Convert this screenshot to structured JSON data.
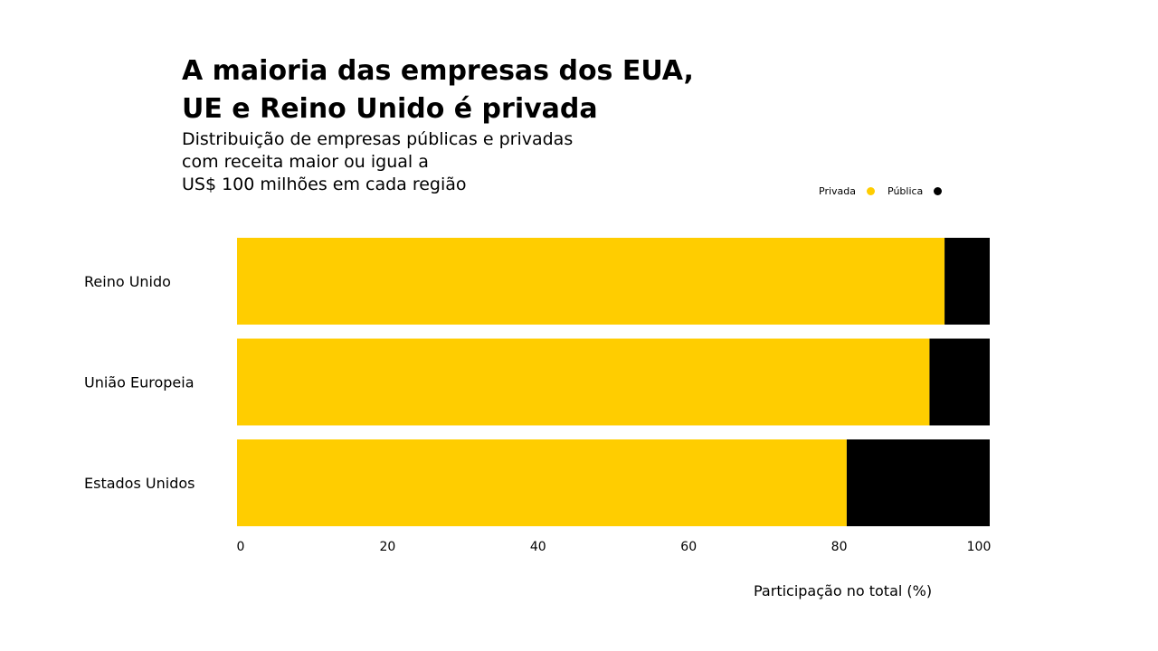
{
  "chart_data": {
    "type": "bar",
    "orientation": "horizontal",
    "stacked": true,
    "title_lines": [
      "A maioria das empresas dos EUA,",
      "UE e Reino Unido é privada"
    ],
    "subtitle_lines": [
      "Distribuição de empresas públicas e privadas",
      "com receita maior ou igual a",
      "US$ 100 milhões em cada região"
    ],
    "categories": [
      "Reino Unido",
      "União Europeia",
      "Estados Unidos"
    ],
    "series": [
      {
        "name": "Privada",
        "color": "#FFCD00",
        "values": [
          94,
          92,
          81
        ]
      },
      {
        "name": "Pública",
        "color": "#000000",
        "values": [
          6,
          8,
          19
        ]
      }
    ],
    "xlabel": "Participação no total (%)",
    "ylabel": "",
    "xlim": [
      0,
      100
    ],
    "xticks": [
      "0",
      "20",
      "40",
      "60",
      "80",
      "100"
    ],
    "grid": false,
    "legend_position": "top-right"
  }
}
